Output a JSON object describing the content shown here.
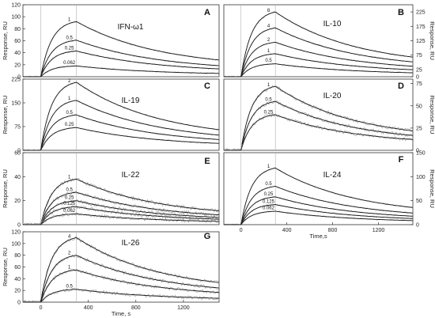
{
  "chart_data": [
    {
      "type": "line",
      "letter": "A",
      "title": "IFN-ω1",
      "ylabel": "Response, RU",
      "yaxis_side": "left",
      "xlim": [
        -150,
        1500
      ],
      "ylim": [
        0,
        120
      ],
      "yticks": [
        0,
        20,
        40,
        60,
        80,
        100,
        120
      ],
      "xticks": [],
      "xlabel": "",
      "series": [
        {
          "name": "1",
          "peak": 92
        },
        {
          "name": "0.5",
          "peak": 61
        },
        {
          "name": "0.25",
          "peak": 43
        },
        {
          "name": "0.062",
          "peak": 18
        }
      ]
    },
    {
      "type": "line",
      "letter": "B",
      "title": "IL-10",
      "ylabel": "Response, RU",
      "yaxis_side": "right",
      "xlim": [
        -150,
        1500
      ],
      "ylim": [
        0,
        250
      ],
      "yticks": [
        0,
        25,
        75,
        125,
        175,
        225
      ],
      "xticks": [],
      "xlabel": "",
      "series": [
        {
          "name": "8",
          "peak": 225
        },
        {
          "name": "4",
          "peak": 170
        },
        {
          "name": "2",
          "peak": 120
        },
        {
          "name": "1",
          "peak": 80
        },
        {
          "name": "0.5",
          "peak": 45
        }
      ]
    },
    {
      "type": "line",
      "letter": "C",
      "title": "IL-19",
      "ylabel": "Response, RU",
      "yaxis_side": "left",
      "xlim": [
        -150,
        1500
      ],
      "ylim": [
        0,
        225
      ],
      "yticks": [
        0,
        75,
        150,
        225
      ],
      "xticks": [],
      "xlabel": "",
      "series": [
        {
          "name": "2",
          "peak": 215
        },
        {
          "name": "1",
          "peak": 158
        },
        {
          "name": "0.5",
          "peak": 112
        },
        {
          "name": "0.25",
          "peak": 72
        }
      ]
    },
    {
      "type": "line",
      "letter": "D",
      "title": "IL-20",
      "ylabel": "Response, RU",
      "yaxis_side": "right",
      "xlim": [
        -150,
        1500
      ],
      "ylim": [
        0,
        80
      ],
      "yticks": [
        0,
        25,
        50,
        75
      ],
      "xticks": [],
      "xlabel": "",
      "series": [
        {
          "name": "1",
          "peak": 72
        },
        {
          "name": "0.5",
          "peak": 55
        },
        {
          "name": "0.25",
          "peak": 40
        }
      ]
    },
    {
      "type": "line",
      "letter": "E",
      "title": "IL-22",
      "ylabel": "Response, RU",
      "yaxis_side": "left",
      "xlim": [
        -150,
        1500
      ],
      "ylim": [
        0,
        60
      ],
      "yticks": [
        0,
        20,
        40,
        60
      ],
      "xticks": [],
      "xlabel": "",
      "series": [
        {
          "name": "1",
          "peak": 38
        },
        {
          "name": "0.5",
          "peak": 27
        },
        {
          "name": "0.25",
          "peak": 20
        },
        {
          "name": "0.125",
          "peak": 15
        },
        {
          "name": "0.062",
          "peak": 9
        }
      ]
    },
    {
      "type": "line",
      "letter": "F",
      "title": "IL-24",
      "ylabel": "Response, RU",
      "yaxis_side": "right",
      "xlim": [
        -150,
        1500
      ],
      "ylim": [
        0,
        150
      ],
      "yticks": [
        0,
        50,
        100,
        150
      ],
      "xticks": [
        0,
        400,
        800,
        1200
      ],
      "xlabel": "Time,s",
      "series": [
        {
          "name": "1",
          "peak": 118
        },
        {
          "name": "0.5",
          "peak": 80
        },
        {
          "name": "0.25",
          "peak": 58
        },
        {
          "name": "0.125",
          "peak": 42
        },
        {
          "name": "0.062",
          "peak": 28
        }
      ]
    },
    {
      "type": "line",
      "letter": "G",
      "title": "IL-26",
      "ylabel": "Response, RU",
      "yaxis_side": "left",
      "xlim": [
        -150,
        1500
      ],
      "ylim": [
        0,
        120
      ],
      "yticks": [
        0,
        20,
        40,
        60,
        80,
        100,
        120
      ],
      "xticks": [
        0,
        400,
        800,
        1200
      ],
      "xlabel": "Time, s",
      "series": [
        {
          "name": "4",
          "peak": 110
        },
        {
          "name": "2",
          "peak": 80
        },
        {
          "name": "1",
          "peak": 55
        },
        {
          "name": "0.5",
          "peak": 22
        }
      ]
    }
  ],
  "colors": {
    "fit": "#1a1a1a",
    "raw": "#a8a8a8",
    "frame": "#333333",
    "vline": "#b0b0b0"
  }
}
